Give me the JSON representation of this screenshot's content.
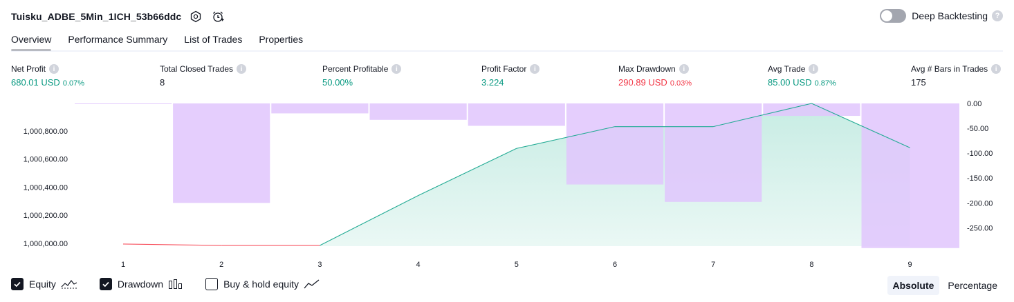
{
  "header": {
    "title": "Tuisku_ADBE_5Min_1ICH_53b66ddc",
    "settings_icon": "gear-hex-icon",
    "alert_icon": "alarm-add-icon",
    "deep_backtesting_label": "Deep Backtesting",
    "deep_backtesting_on": false
  },
  "tabs": [
    {
      "label": "Overview",
      "active": true
    },
    {
      "label": "Performance Summary",
      "active": false
    },
    {
      "label": "List of Trades",
      "active": false
    },
    {
      "label": "Properties",
      "active": false
    }
  ],
  "metrics": [
    {
      "label": "Net Profit",
      "value": "680.01 USD",
      "pct": "0.07%",
      "color": "#089981"
    },
    {
      "label": "Total Closed Trades",
      "value": "8",
      "pct": "",
      "color": "#131722"
    },
    {
      "label": "Percent Profitable",
      "value": "50.00%",
      "pct": "",
      "color": "#089981"
    },
    {
      "label": "Profit Factor",
      "value": "3.224",
      "pct": "",
      "color": "#089981"
    },
    {
      "label": "Max Drawdown",
      "value": "290.89 USD",
      "pct": "0.03%",
      "color": "#f23645"
    },
    {
      "label": "Avg Trade",
      "value": "85.00 USD",
      "pct": "0.87%",
      "color": "#089981"
    },
    {
      "label": "Avg # Bars in Trades",
      "value": "175",
      "pct": "",
      "color": "#131722"
    }
  ],
  "chart_data": {
    "type": "line",
    "x": [
      1,
      2,
      3,
      4,
      5,
      6,
      7,
      8,
      9
    ],
    "equity": [
      999995,
      999985,
      999985,
      1000340,
      1000675,
      1000830,
      1000830,
      1000995,
      1000680
    ],
    "drawdown_bars": [
      0,
      -200,
      -20,
      -33,
      -45,
      -163,
      -198,
      -25,
      -290.89
    ],
    "left_axis": {
      "ticks": [
        "1,000,000.00",
        "1,000,200.00",
        "1,000,400.00",
        "1,000,600.00",
        "1,000,800.00"
      ],
      "tick_values": [
        1000000,
        1000200,
        1000400,
        1000600,
        1000800
      ],
      "range": [
        999980,
        1000995
      ]
    },
    "right_axis": {
      "ticks": [
        "0.00",
        "-50.00",
        "-100.00",
        "-150.00",
        "-200.00",
        "-250.00"
      ],
      "tick_values": [
        0,
        -50,
        -100,
        -150,
        -200,
        -250
      ],
      "range": [
        -287,
        0
      ]
    },
    "x_ticks": [
      "1",
      "2",
      "3",
      "4",
      "5",
      "6",
      "7",
      "8",
      "9"
    ],
    "colors": {
      "equity_up": "#22ab94",
      "equity_down": "#f7525f",
      "drawdown": "#e1c6fd",
      "fill": "#c4ebe2"
    }
  },
  "legend": [
    {
      "label": "Equity",
      "checked": true,
      "icon": "equity-line-icon"
    },
    {
      "label": "Drawdown",
      "checked": true,
      "icon": "drawdown-bars-icon"
    },
    {
      "label": "Buy & hold equity",
      "checked": false,
      "icon": "buy-hold-line-icon"
    }
  ],
  "mode": {
    "absolute": "Absolute",
    "percentage": "Percentage",
    "active": "absolute"
  }
}
